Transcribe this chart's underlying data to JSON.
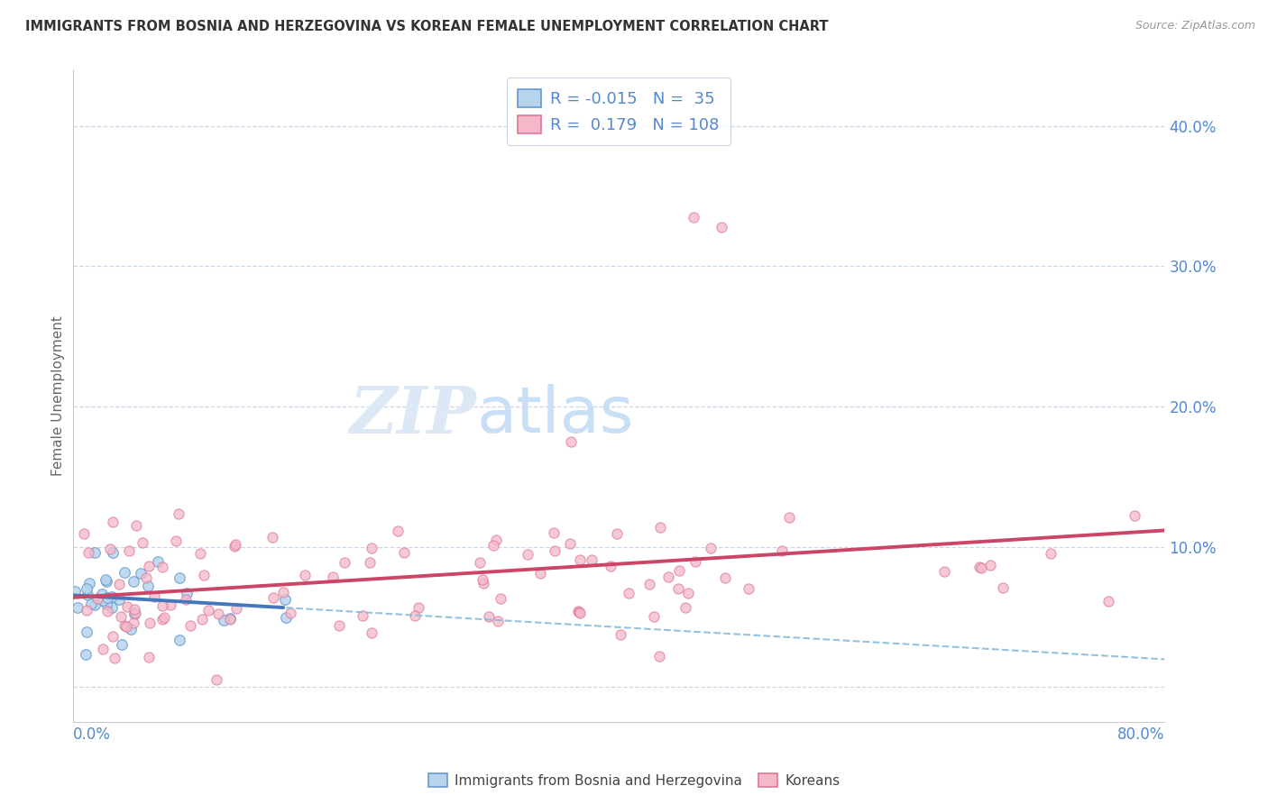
{
  "title": "IMMIGRANTS FROM BOSNIA AND HERZEGOVINA VS KOREAN FEMALE UNEMPLOYMENT CORRELATION CHART",
  "source": "Source: ZipAtlas.com",
  "ylabel": "Female Unemployment",
  "xlim": [
    0.0,
    0.8
  ],
  "ylim": [
    -0.025,
    0.44
  ],
  "ytick_positions": [
    0.0,
    0.1,
    0.2,
    0.3,
    0.4
  ],
  "ytick_labels": [
    "",
    "10.0%",
    "20.0%",
    "30.0%",
    "40.0%"
  ],
  "r_bosnia": -0.015,
  "n_bosnia": 35,
  "r_korean": 0.179,
  "n_korean": 108,
  "legend_label_bosnia": "Immigrants from Bosnia and Herzegovina",
  "legend_label_korean": "Koreans",
  "bosnia_face": "#b8d4ed",
  "bosnia_edge": "#6699cc",
  "korean_face": "#f4b8c8",
  "korean_edge": "#dd7799",
  "trend_bosnia_solid": "#4477bb",
  "trend_bosnia_dash": "#88bbdd",
  "trend_korean": "#cc4466",
  "grid_color": "#c8d8e8",
  "background": "#ffffff",
  "tick_color": "#5588cc",
  "watermark_zip": "ZIP",
  "watermark_atlas": "atlas",
  "title_color": "#333333",
  "source_color": "#999999",
  "ylabel_color": "#666666"
}
